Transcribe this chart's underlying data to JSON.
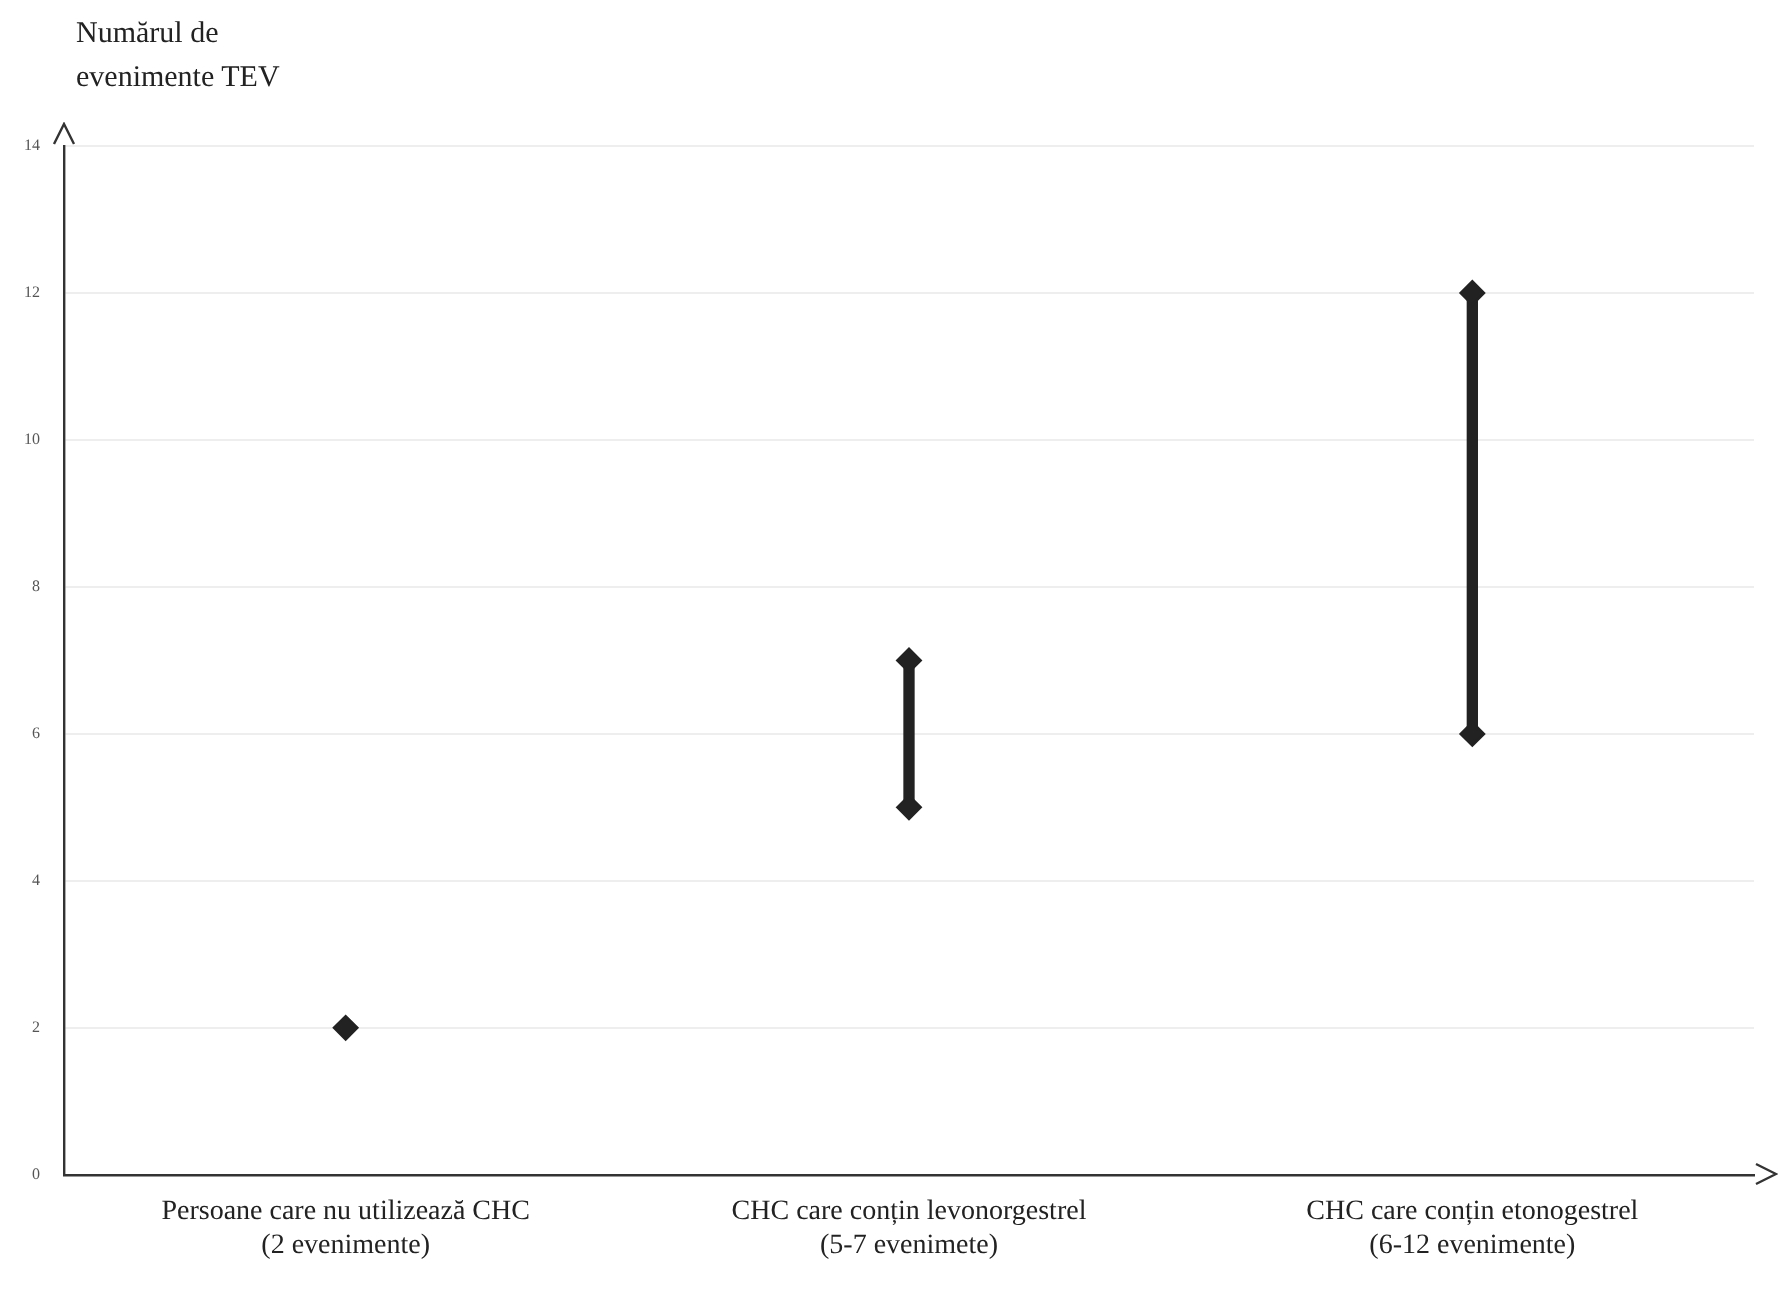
{
  "chart_data": {
    "type": "scatter",
    "ylabel": "Numărul de evenimente TEV",
    "categories": [
      "Persoane care nu utilizează CHC\n(2 evenimente)",
      "CHC care conțin levonorgestrel\n(5-7 evenimete)",
      "CHC care conțin etonogestrel\n(6-12 evenimente)"
    ],
    "series": [
      {
        "type": "bar",
        "color": "#222222",
        "base": [
          null,
          5,
          6
        ],
        "values": [
          null,
          2,
          6
        ]
      },
      {
        "color": "#222222",
        "values": [
          2,
          5,
          6
        ]
      },
      {
        "color": "#222222",
        "values": [
          null,
          7,
          12
        ]
      }
    ],
    "ylim": [
      0,
      14
    ],
    "yticks": [
      0,
      2,
      4,
      6,
      8,
      10,
      12,
      14
    ],
    "grid": "y",
    "marker": "diamond",
    "legend": false
  }
}
